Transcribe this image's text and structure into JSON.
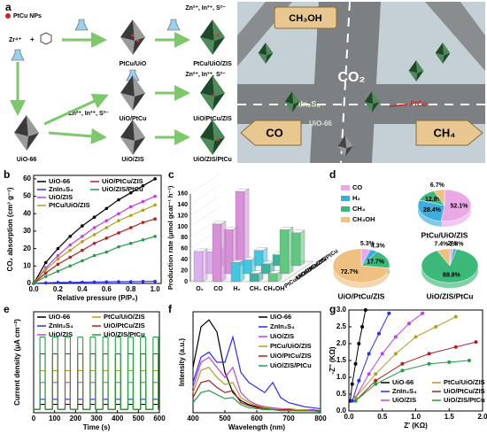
{
  "scheme": {
    "label": "a",
    "pt_nps": "PtCu NPs",
    "zr": "Zr⁴⁺",
    "plus": "+",
    "precursors": [
      "Zn²⁺, In³⁺, S²⁻",
      "Zn²⁺, In³⁺, S²⁻",
      "Zn²⁺, In³⁺, S²⁻"
    ],
    "products": [
      "PtCu/UiO",
      "PtCu/UiO/ZIS",
      "UiO/PtCu",
      "UiO/PtCu/ZIS",
      "UiO-66",
      "UiO/ZIS",
      "UiO/ZIS/PtCu"
    ],
    "illustration": {
      "ch3oh": "CH₃OH",
      "co2": "CO₂",
      "znin2s4": "ZnIn₂S₄",
      "ptcu": "PtCu",
      "uio": "UiO-66",
      "co": "CO",
      "ch4": "CH₄"
    }
  },
  "chart_data": [
    {
      "type": "line",
      "panel": "b",
      "markers": true,
      "ylabel": "CO₂ absorption (cm³ g⁻¹)",
      "xlabel": "Relative pressure (P/P₀)",
      "x": [
        0,
        0.1,
        0.2,
        0.3,
        0.4,
        0.5,
        0.6,
        0.7,
        0.8,
        0.9,
        1.0
      ],
      "xlim": [
        0,
        1.05
      ],
      "xticks": [
        {
          "value": 0,
          "label": "0.0"
        },
        0.2,
        0.4,
        0.6,
        0.8,
        {
          "value": 1,
          "label": "1.0"
        }
      ],
      "ylim": [
        0,
        62
      ],
      "yticks": [
        0,
        10,
        20,
        30,
        40,
        50,
        60
      ],
      "series": [
        {
          "name": "UiO-66",
          "color": "#000000",
          "values": [
            0,
            12,
            20,
            27,
            33,
            38,
            43,
            48,
            52,
            56,
            60
          ]
        },
        {
          "name": "ZnIn₂S₄",
          "color": "#2a2aff",
          "values": [
            0,
            0.3,
            0.5,
            0.6,
            0.7,
            0.8,
            0.9,
            1,
            1,
            1.1,
            1.2
          ]
        },
        {
          "name": "UiO/ZIS",
          "color": "#c040e0",
          "values": [
            0,
            9,
            16,
            22,
            27,
            32,
            36,
            40,
            44,
            47,
            50
          ]
        },
        {
          "name": "PtCu/UiO/ZIS",
          "color": "#b0a020",
          "values": [
            0,
            8,
            14,
            19,
            24,
            28,
            32,
            36,
            39,
            42,
            45
          ]
        },
        {
          "name": "UiO/PtCu/ZIS",
          "color": "#b02020",
          "values": [
            0,
            6,
            11,
            15,
            19,
            23,
            26,
            29,
            32,
            35,
            37
          ]
        },
        {
          "name": "UiO/ZIS/PtCu",
          "color": "#20a040",
          "values": [
            0,
            4,
            7,
            10,
            13,
            16,
            18,
            21,
            23,
            25,
            27
          ]
        }
      ]
    },
    {
      "type": "bar3d",
      "panel": "c",
      "ylabel": "Production rate (μmol gcat⁻¹ h⁻¹)",
      "categories": [
        "O₂",
        "CO",
        "H₂",
        "CH₄",
        "CH₃OH"
      ],
      "colors": [
        "#dcb0ec",
        "#d890d8",
        "#40c8e0",
        "#40b0a0",
        "#60c880"
      ],
      "ylim": [
        0,
        160
      ],
      "yticks": [
        0,
        20,
        40,
        60,
        80,
        100,
        120,
        140,
        160
      ],
      "series": [
        {
          "name": "UiO/ZIS/PtCu",
          "color": "#20a040",
          "values": [
            30,
            135,
            28,
            20,
            60
          ]
        },
        {
          "name": "UiO/PtCu/ZIS",
          "color": "#b02020",
          "values": [
            40,
            80,
            25,
            18,
            80
          ]
        },
        {
          "name": "PtCu/UiO/ZIS",
          "color": "#b0a020",
          "values": [
            55,
            105,
            35,
            15,
            15
          ]
        }
      ]
    },
    {
      "type": "pie",
      "panel": "d",
      "categories": [
        "CO",
        "H₂",
        "CH₄",
        "CH₃OH"
      ],
      "colors": [
        "#eaa8e6",
        "#3aaee0",
        "#3cb87a",
        "#f0c080"
      ],
      "pies": [
        {
          "title": "PtCu/UiO/ZIS",
          "color": "#7a2a7a",
          "values": [
            52.1,
            28.4,
            12.8,
            6.7
          ],
          "value_labels": [
            "52.1%",
            "28.4%",
            "12.8%",
            "6.7%"
          ]
        },
        {
          "title": "UiO/PtCu/ZIS",
          "color": "#8a1a1a",
          "values": [
            5.3,
            4.3,
            17.7,
            72.7
          ],
          "value_labels": [
            "5.3%",
            "4.3%",
            "17.7%",
            "72.7%"
          ]
        },
        {
          "title": "UiO/ZIS/PtCu",
          "color": "#1a6a2a",
          "values": [
            2,
            1.8,
            88.8,
            7.4
          ],
          "value_labels": [
            "2%",
            "1.8%",
            "88.8%",
            "7.4%"
          ]
        }
      ]
    },
    {
      "type": "step",
      "panel": "e",
      "ylabel": "Current density (μA cm⁻²)",
      "xlabel": "Time (s)",
      "x": [
        0,
        30,
        55,
        90,
        115,
        150,
        175,
        210,
        235,
        270,
        295,
        330,
        355,
        390,
        415,
        450,
        475,
        510,
        535,
        570,
        595
      ],
      "xlim": [
        0,
        600
      ],
      "xticks": [
        0,
        100,
        200,
        300,
        400,
        500,
        600
      ],
      "ylim": [
        0,
        0.6
      ],
      "series": [
        {
          "name": "UiO-66",
          "color": "#000000",
          "values": [
            0.02,
            0.05,
            0.02,
            0.05,
            0.02,
            0.05,
            0.02,
            0.05,
            0.02,
            0.05,
            0.02,
            0.05,
            0.02,
            0.05,
            0.02,
            0.05,
            0.02,
            0.05,
            0.02,
            0.05,
            0.02
          ]
        },
        {
          "name": "ZnIn₂S₄",
          "color": "#2a2aff",
          "values": [
            0.02,
            0.08,
            0.02,
            0.08,
            0.02,
            0.08,
            0.02,
            0.08,
            0.02,
            0.08,
            0.02,
            0.08,
            0.02,
            0.08,
            0.02,
            0.08,
            0.02,
            0.08,
            0.02,
            0.08,
            0.02
          ]
        },
        {
          "name": "UiO/ZIS",
          "color": "#c040e0",
          "values": [
            0.02,
            0.18,
            0.02,
            0.18,
            0.02,
            0.18,
            0.02,
            0.18,
            0.02,
            0.18,
            0.02,
            0.18,
            0.02,
            0.18,
            0.02,
            0.18,
            0.02,
            0.18,
            0.02,
            0.18,
            0.02
          ]
        },
        {
          "name": "PtCu/UiO/ZIS",
          "color": "#b0a020",
          "values": [
            0.02,
            0.25,
            0.02,
            0.25,
            0.02,
            0.25,
            0.02,
            0.25,
            0.02,
            0.25,
            0.02,
            0.25,
            0.02,
            0.25,
            0.02,
            0.25,
            0.02,
            0.25,
            0.02,
            0.25,
            0.02
          ]
        },
        {
          "name": "UiO/PtCu/ZIS",
          "color": "#b02020",
          "values": [
            0.02,
            0.35,
            0.02,
            0.35,
            0.02,
            0.35,
            0.02,
            0.35,
            0.02,
            0.35,
            0.02,
            0.35,
            0.02,
            0.35,
            0.02,
            0.35,
            0.02,
            0.35,
            0.02,
            0.35,
            0.02
          ]
        },
        {
          "name": "UiO/ZIS/PtCu",
          "color": "#20a040",
          "values": [
            0.02,
            0.45,
            0.02,
            0.45,
            0.02,
            0.45,
            0.02,
            0.45,
            0.02,
            0.45,
            0.02,
            0.45,
            0.02,
            0.45,
            0.02,
            0.45,
            0.02,
            0.45,
            0.02,
            0.45,
            0.02
          ]
        }
      ]
    },
    {
      "type": "line",
      "panel": "f",
      "markers": false,
      "ylabel": "Intensity (a.u.)",
      "xlabel": "Wavelength (nm)",
      "x": [
        400,
        425,
        450,
        475,
        500,
        525,
        550,
        575,
        600,
        625,
        650,
        675,
        700,
        725,
        750,
        775,
        800
      ],
      "xlim": [
        400,
        800
      ],
      "xticks": [
        400,
        500,
        600,
        700,
        800
      ],
      "ylim": [
        0,
        1
      ],
      "series": [
        {
          "name": "UiO-66",
          "color": "#000000",
          "values": [
            0.45,
            0.85,
            0.92,
            0.8,
            0.4,
            0.2,
            0.12,
            0.08,
            0.06,
            0.05,
            0.04,
            0.04,
            0.03,
            0.03,
            0.03,
            0.03,
            0.02
          ]
        },
        {
          "name": "ZnIn₂S₄",
          "color": "#2a2aff",
          "values": [
            0.3,
            0.55,
            0.6,
            0.5,
            0.5,
            0.75,
            0.4,
            0.3,
            0.25,
            0.2,
            0.3,
            0.15,
            0.1,
            0.08,
            0.06,
            0.05,
            0.04
          ]
        },
        {
          "name": "UiO/ZIS",
          "color": "#c040e0",
          "values": [
            0.25,
            0.5,
            0.55,
            0.45,
            0.35,
            0.45,
            0.2,
            0.12,
            0.08,
            0.06,
            0.05,
            0.04,
            0.04,
            0.03,
            0.03,
            0.03,
            0.02
          ]
        },
        {
          "name": "PtCu/UiO/ZIS",
          "color": "#b0a020",
          "values": [
            0.2,
            0.42,
            0.45,
            0.35,
            0.28,
            0.3,
            0.15,
            0.1,
            0.07,
            0.05,
            0.04,
            0.04,
            0.03,
            0.03,
            0.03,
            0.02,
            0.02
          ]
        },
        {
          "name": "UiO/PtCu/ZIS",
          "color": "#b02020",
          "values": [
            0.15,
            0.3,
            0.32,
            0.25,
            0.2,
            0.22,
            0.1,
            0.07,
            0.05,
            0.04,
            0.03,
            0.03,
            0.03,
            0.02,
            0.02,
            0.02,
            0.02
          ]
        },
        {
          "name": "UiO/ZIS/PtCu",
          "color": "#20a040",
          "values": [
            0.1,
            0.2,
            0.22,
            0.18,
            0.14,
            0.15,
            0.08,
            0.05,
            0.04,
            0.03,
            0.03,
            0.02,
            0.02,
            0.02,
            0.02,
            0.02,
            0.01
          ]
        }
      ]
    },
    {
      "type": "scatter",
      "panel": "g",
      "ylabel": "-Z'' (KΩ)",
      "xlabel": "Z' (KΩ)",
      "xlim": [
        0,
        2
      ],
      "xticks": [
        {
          "value": 0,
          "label": "0.0"
        },
        0.5,
        {
          "value": 1,
          "label": "1.0"
        },
        1.5,
        {
          "value": 2,
          "label": "2.0"
        }
      ],
      "ylim": [
        0,
        3
      ],
      "yticks": [
        {
          "value": 0,
          "label": "0.0"
        },
        0.5,
        {
          "value": 1,
          "label": "1.0"
        },
        1.5,
        {
          "value": 2,
          "label": "2.0"
        },
        2.5,
        {
          "value": 3,
          "label": "3.0"
        }
      ],
      "series": [
        {
          "name": "UiO-66",
          "color": "#000000",
          "x": [
            0.02,
            0.05,
            0.1,
            0.15,
            0.2,
            0.25
          ],
          "values": [
            0.3,
            0.8,
            1.4,
            2.0,
            2.5,
            3.0
          ]
        },
        {
          "name": "ZnIn₂S₄",
          "color": "#2a2aff",
          "x": [
            0.05,
            0.15,
            0.3,
            0.45,
            0.6
          ],
          "values": [
            0.3,
            0.9,
            1.7,
            2.3,
            2.9
          ]
        },
        {
          "name": "UiO/ZIS",
          "color": "#c040e0",
          "x": [
            0.1,
            0.3,
            0.5,
            0.7,
            0.9,
            1.1
          ],
          "values": [
            0.4,
            1.1,
            1.7,
            2.2,
            2.6,
            2.9
          ]
        },
        {
          "name": "PtCu/UiO/ZIS",
          "color": "#b0a020",
          "x": [
            0.1,
            0.4,
            0.7,
            1.0,
            1.3,
            1.6
          ],
          "values": [
            0.4,
            1.1,
            1.7,
            2.2,
            2.5,
            2.8
          ]
        },
        {
          "name": "UiO/PtCu/ZIS",
          "color": "#b02020",
          "x": [
            0.1,
            0.4,
            0.8,
            1.2,
            1.6,
            1.9
          ],
          "values": [
            0.3,
            0.9,
            1.4,
            1.7,
            1.9,
            2.05
          ]
        },
        {
          "name": "UiO/ZIS/PtCu",
          "color": "#20a040",
          "x": [
            0.1,
            0.4,
            0.8,
            1.2,
            1.5,
            1.8
          ],
          "values": [
            0.3,
            0.8,
            1.2,
            1.4,
            1.45,
            1.5
          ]
        }
      ]
    }
  ]
}
